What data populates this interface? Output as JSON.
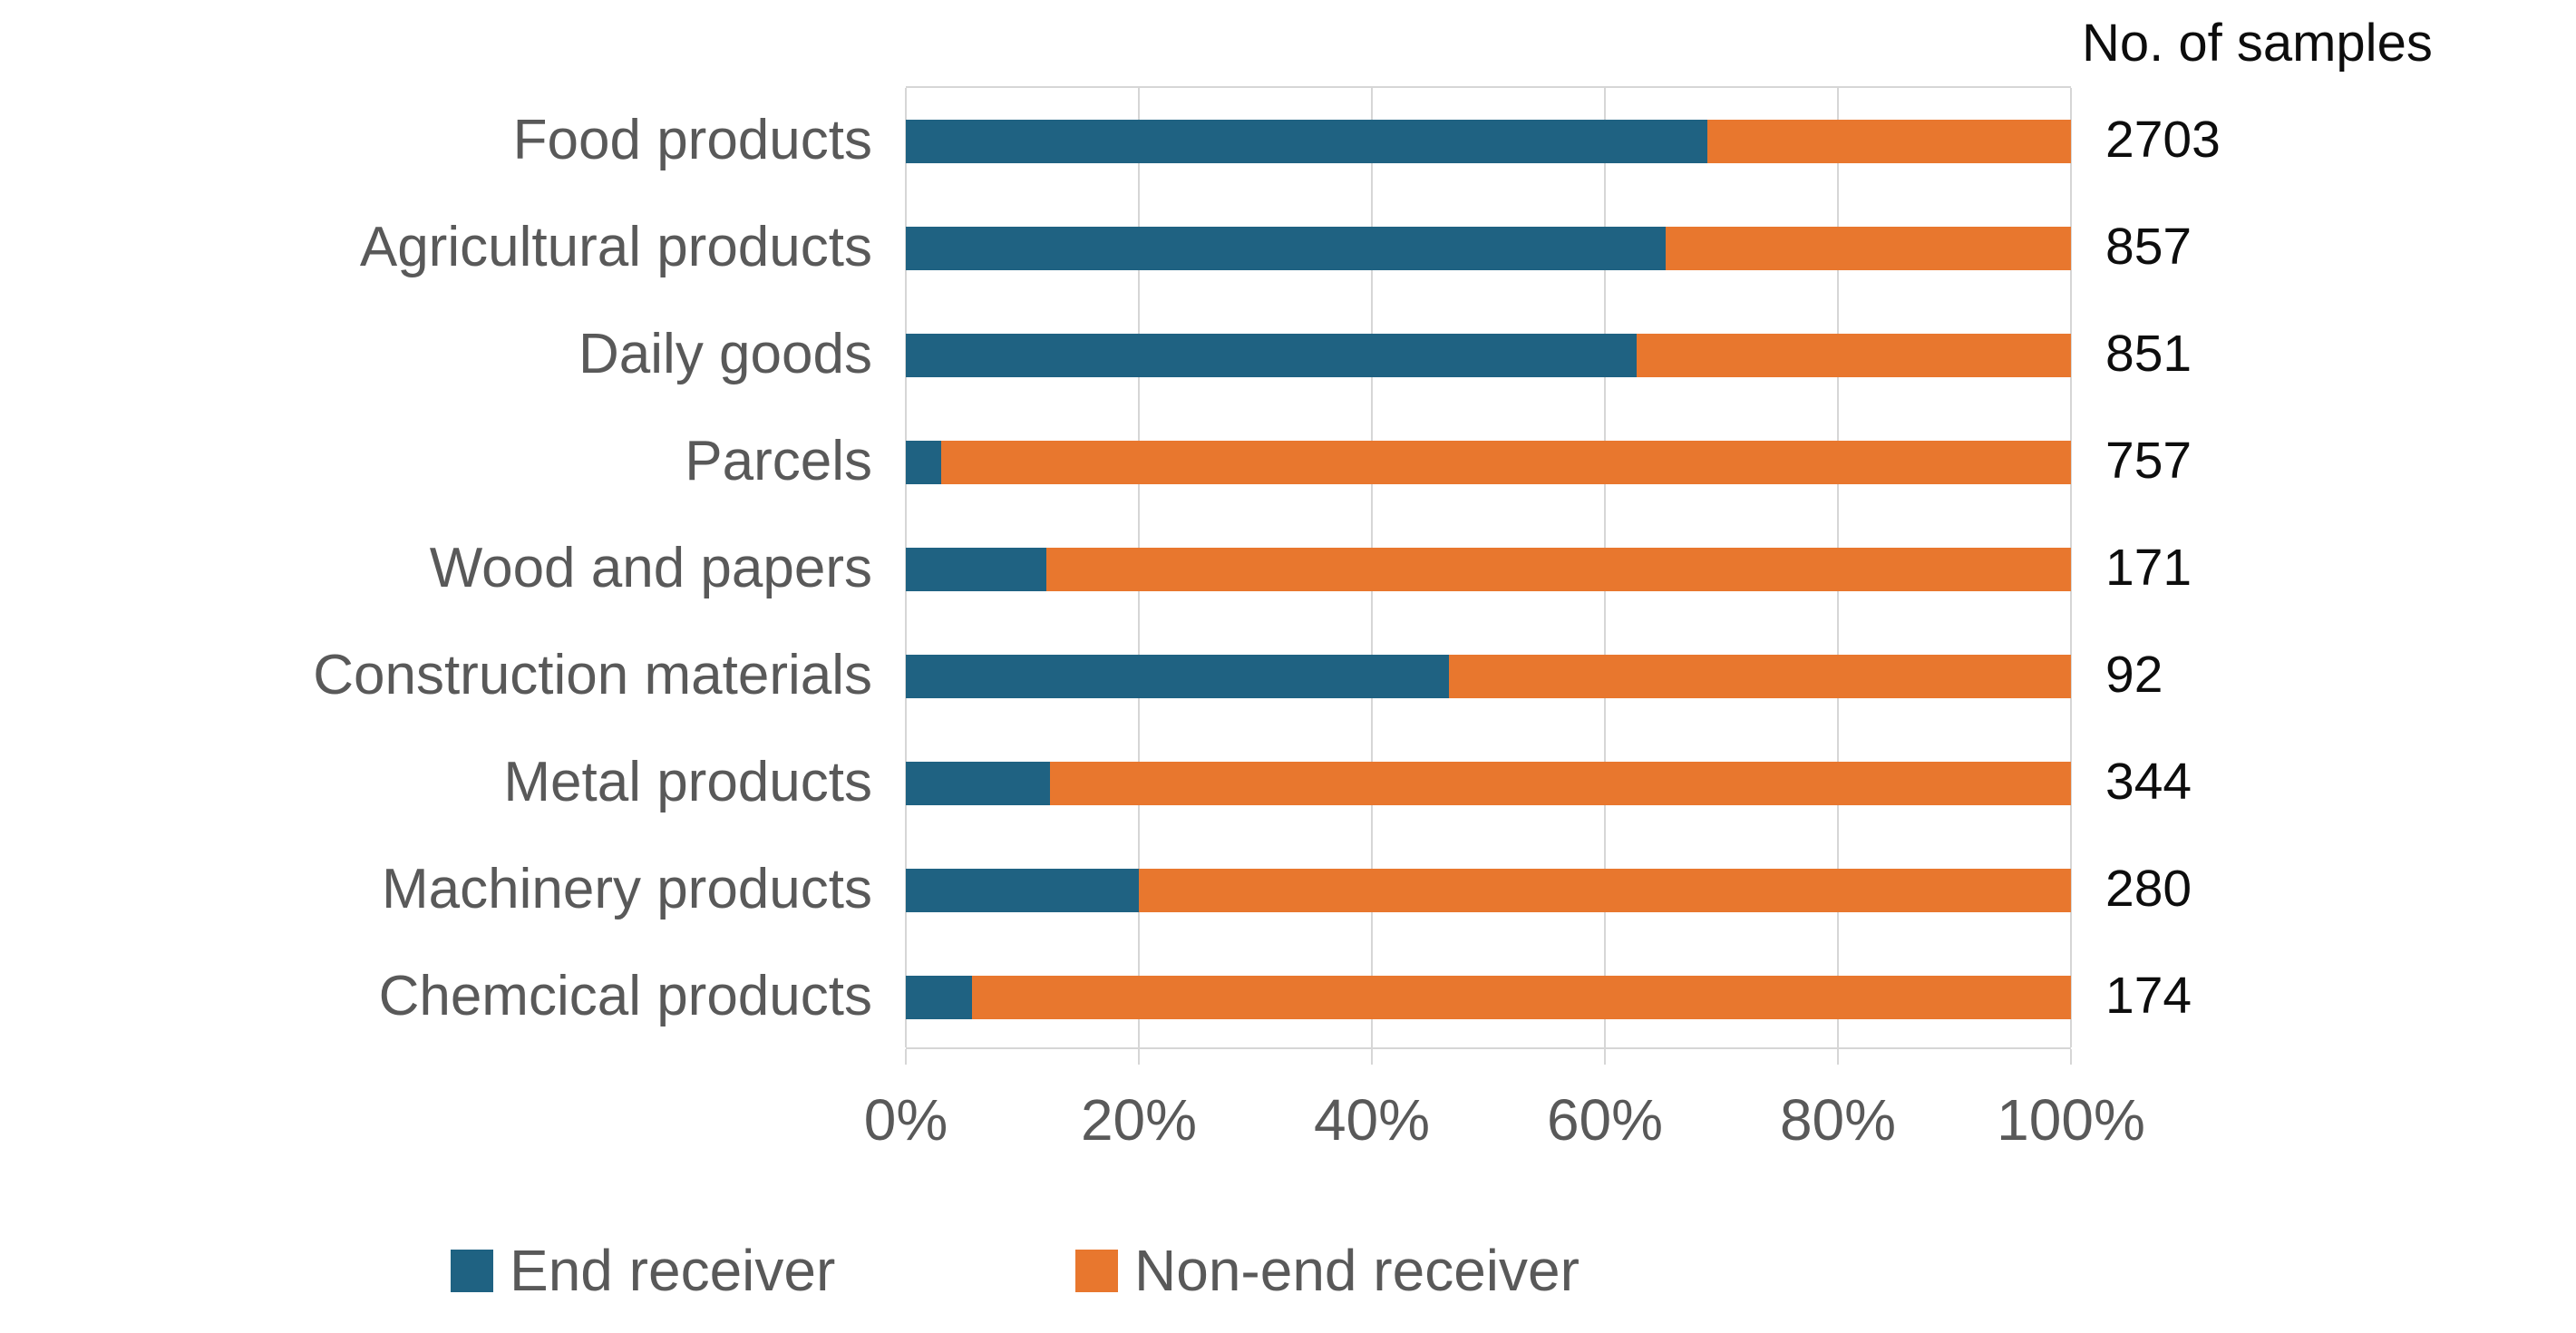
{
  "chart_data": {
    "type": "bar",
    "orientation": "horizontal",
    "stacked": true,
    "unit": "percent",
    "title": "",
    "xlabel": "",
    "ylabel": "",
    "xlim": [
      0,
      100
    ],
    "x_ticks": [
      "0%",
      "20%",
      "40%",
      "60%",
      "80%",
      "100%"
    ],
    "grid": "vertical-only",
    "legend_position": "bottom",
    "samples_header": "No. of samples",
    "categories": [
      "Food products",
      "Agricultural products",
      "Daily goods",
      "Parcels",
      "Wood and papers",
      "Construction materials",
      "Metal products",
      "Machinery products",
      "Chemcical products"
    ],
    "series": [
      {
        "name": "End receiver",
        "color": "#1f6282",
        "values": [
          68.8,
          65.2,
          62.7,
          3.0,
          12.1,
          46.6,
          12.4,
          20.0,
          5.7
        ]
      },
      {
        "name": "Non-end receiver",
        "color": "#e8772e",
        "values": [
          31.2,
          34.8,
          37.3,
          97.0,
          87.9,
          53.4,
          87.6,
          80.0,
          94.3
        ]
      }
    ],
    "sample_counts": [
      2703,
      857,
      851,
      757,
      171,
      92,
      344,
      280,
      174
    ]
  },
  "colors": {
    "gridline": "#d6d6d6",
    "category_text": "#595959",
    "tick_text": "#595959",
    "count_text": "#0d0d0d"
  }
}
